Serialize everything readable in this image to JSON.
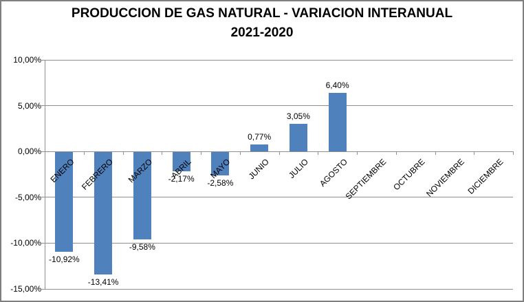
{
  "title": {
    "line1": "PRODUCCION DE GAS NATURAL - VARIACION INTERANUAL",
    "line2": "2021-2020"
  },
  "chart_data": {
    "type": "bar",
    "title": "PRODUCCION DE GAS NATURAL - VARIACION INTERANUAL 2021-2020",
    "categories": [
      "ENERO",
      "FEBRERO",
      "MARZO",
      "ABRIL",
      "MAYO",
      "JUNIO",
      "JULIO",
      "AGOSTO",
      "SEPTIEMBRE",
      "OCTUBRE",
      "NOVIEMBRE",
      "DICIEMBRE"
    ],
    "values": [
      -10.92,
      -13.41,
      -9.58,
      -2.17,
      -2.58,
      0.77,
      3.05,
      6.4,
      null,
      null,
      null,
      null
    ],
    "data_labels": [
      "-10,92%",
      "-13,41%",
      "-9,58%",
      "-2,17%",
      "-2,58%",
      "0,77%",
      "3,05%",
      "6,40%",
      null,
      null,
      null,
      null
    ],
    "xlabel": "",
    "ylabel": "",
    "y_axis": {
      "ylim": [
        -15,
        10
      ],
      "ticks": [
        10,
        5,
        0,
        -5,
        -10,
        -15
      ],
      "tick_labels": [
        "10,00%",
        "5,00%",
        "0,00%",
        "-5,00%",
        "-10,00%",
        "-15,00%"
      ]
    },
    "grid": true,
    "legend": "none",
    "colors": {
      "bar": "#4f81bd",
      "gridline": "#8e8e8e",
      "axis": "#8e8e8e",
      "text": "#000000",
      "border": "#7f7f7f",
      "background": "#ffffff"
    }
  }
}
